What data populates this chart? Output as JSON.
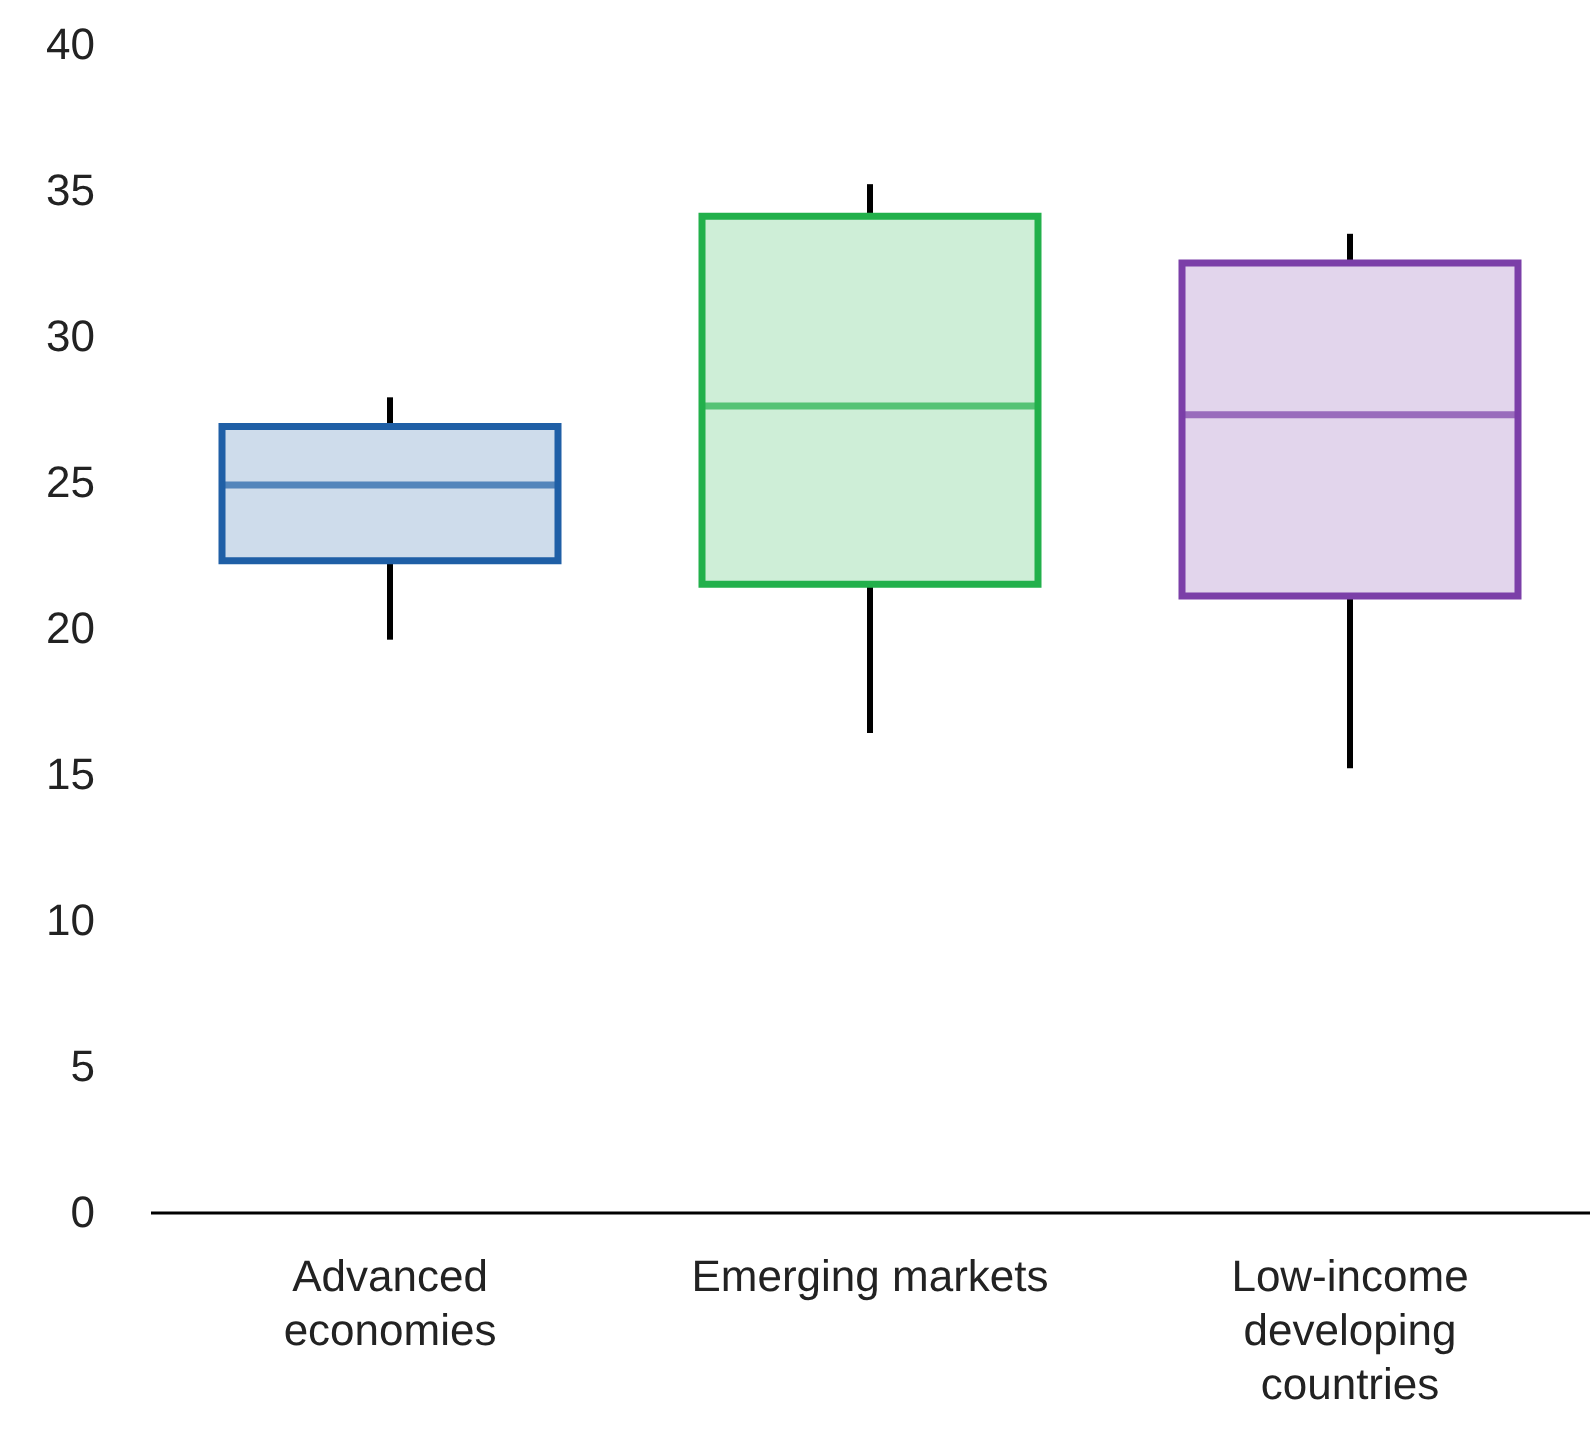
{
  "chart_data": {
    "type": "box",
    "categories": [
      "Advanced economies",
      "Emerging markets",
      "Low-income developing countries"
    ],
    "boxes": [
      {
        "low": 19.6,
        "q1": 22.3,
        "median": 24.9,
        "q3": 26.9,
        "high": 27.9
      },
      {
        "low": 16.4,
        "q1": 21.5,
        "median": 27.6,
        "q3": 34.1,
        "high": 35.2
      },
      {
        "low": 15.2,
        "q1": 21.1,
        "median": 27.3,
        "q3": 32.5,
        "high": 33.5
      }
    ],
    "colors": [
      "#1f5fa6",
      "#22b04b",
      "#7b3fa8"
    ],
    "ylim": [
      0,
      40
    ],
    "yticks": [
      0,
      5,
      10,
      15,
      20,
      25,
      30,
      35,
      40
    ],
    "grid": false,
    "legend": false
  }
}
